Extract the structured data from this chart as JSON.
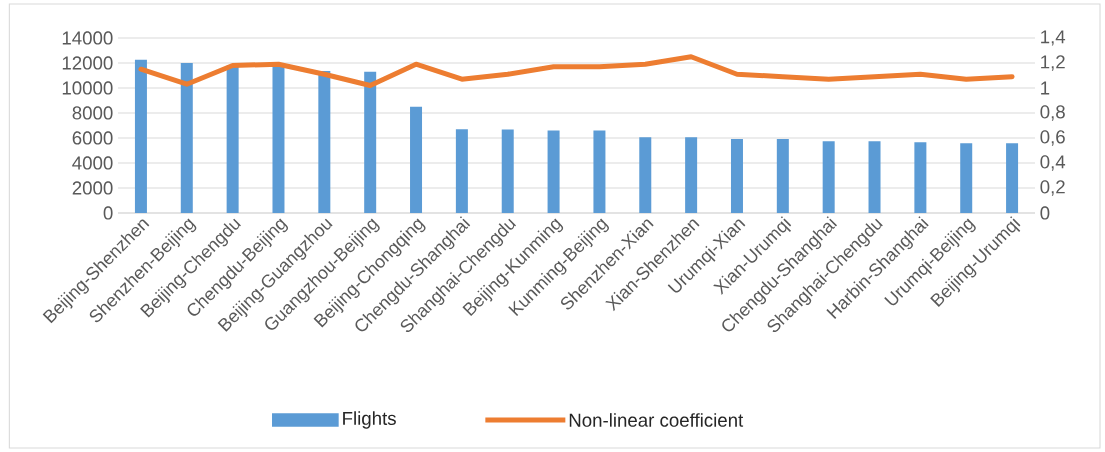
{
  "chart_data": {
    "type": "bar",
    "categories": [
      "Beijing-Shenzhen",
      "Shenzhen-Beijing",
      "Beijing-Chengdu",
      "Chengdu-Beijing",
      "Beijing-Guangzhou",
      "Guangzhou-Beijing",
      "Beijing-Chongqing",
      "Chengdu-Shanghai",
      "Shanghai-Chengdu",
      "Beijing-Kunming",
      "Kunming-Beijing",
      "Shenzhen-Xian",
      "Xian-Shenzhen",
      "Urumqi-Xian",
      "Xian-Urumqi",
      "Chengdu-Shanghai",
      "Shanghai-Chengdu",
      "Harbin-Shanghai",
      "Urumqi-Beijing",
      "Beijing-Urumqi"
    ],
    "series": [
      {
        "name": "Flights",
        "color": "#5b9bd5",
        "values": [
          12250,
          12000,
          11800,
          11900,
          11350,
          11300,
          8500,
          6700,
          6680,
          6600,
          6600,
          6060,
          6060,
          5920,
          5920,
          5740,
          5740,
          5660,
          5570,
          5570
        ]
      },
      {
        "name": "Non-linear coefficient",
        "type": "line",
        "axis": "y2",
        "color": "#ed7d31",
        "values": [
          1.15,
          1.03,
          1.18,
          1.19,
          1.11,
          1.02,
          1.19,
          1.07,
          1.11,
          1.17,
          1.17,
          1.19,
          1.25,
          1.11,
          1.09,
          1.07,
          1.09,
          1.11,
          1.07,
          1.09
        ]
      }
    ],
    "ylim": [
      0,
      14000
    ],
    "yticks": [
      0,
      2000,
      4000,
      6000,
      8000,
      10000,
      12000,
      14000
    ],
    "y2lim": [
      0,
      1.4
    ],
    "y2ticks": [
      0,
      {
        "value": 0.2,
        "label": "0,2"
      },
      {
        "value": 0.4,
        "label": "0,4"
      },
      {
        "value": 0.6,
        "label": "0,6"
      },
      {
        "value": 0.8,
        "label": "0,8"
      },
      1,
      {
        "value": 1.2,
        "label": "1,2"
      },
      {
        "value": 1.4,
        "label": "1,4"
      }
    ],
    "grid": "y",
    "legend": "bottom"
  }
}
